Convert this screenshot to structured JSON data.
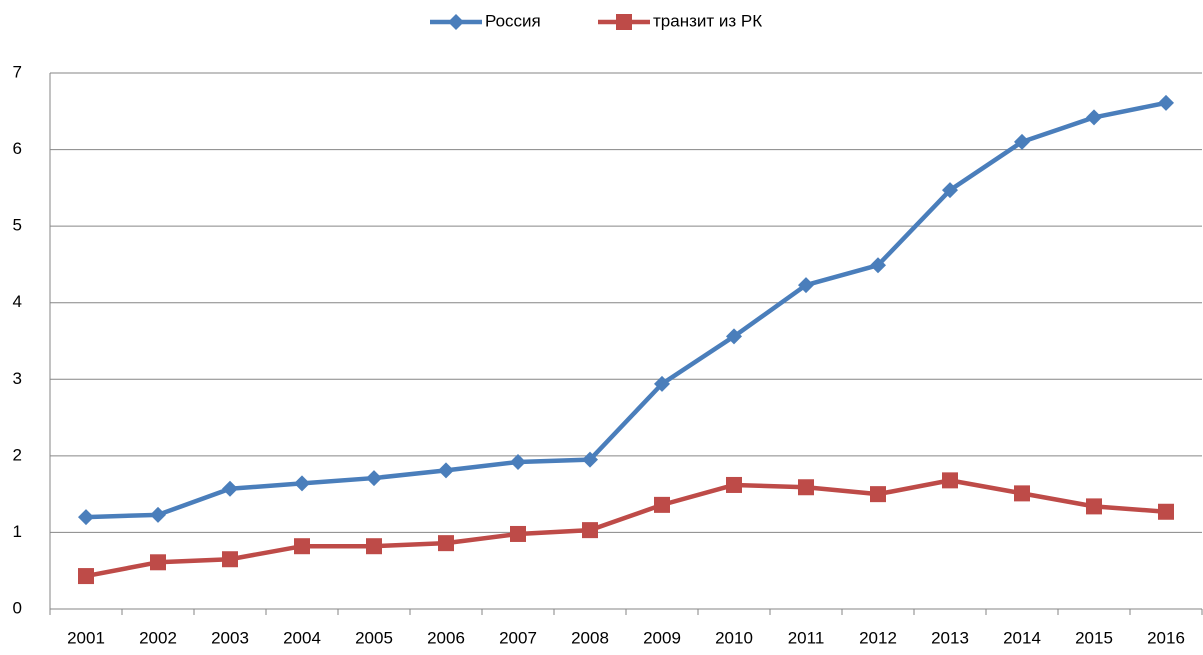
{
  "chart_data": {
    "type": "line",
    "categories": [
      "2001",
      "2002",
      "2003",
      "2004",
      "2005",
      "2006",
      "2007",
      "2008",
      "2009",
      "2010",
      "2011",
      "2012",
      "2013",
      "2014",
      "2015",
      "2016"
    ],
    "series": [
      {
        "name": "Россия",
        "color": "#4a7ebb",
        "marker": "diamond",
        "values": [
          1.2,
          1.23,
          1.57,
          1.64,
          1.71,
          1.81,
          1.92,
          1.95,
          2.94,
          3.56,
          4.23,
          4.49,
          5.47,
          6.1,
          6.42,
          6.61
        ]
      },
      {
        "name": "транзит из РК",
        "color": "#be4b48",
        "marker": "square",
        "values": [
          0.43,
          0.61,
          0.65,
          0.82,
          0.82,
          0.86,
          0.98,
          1.03,
          1.36,
          1.62,
          1.59,
          1.5,
          1.68,
          1.51,
          1.34,
          1.27
        ]
      }
    ],
    "ylim": [
      0,
      7
    ],
    "yticks": [
      0,
      1,
      2,
      3,
      4,
      5,
      6,
      7
    ],
    "grid": true,
    "legend": "top"
  }
}
